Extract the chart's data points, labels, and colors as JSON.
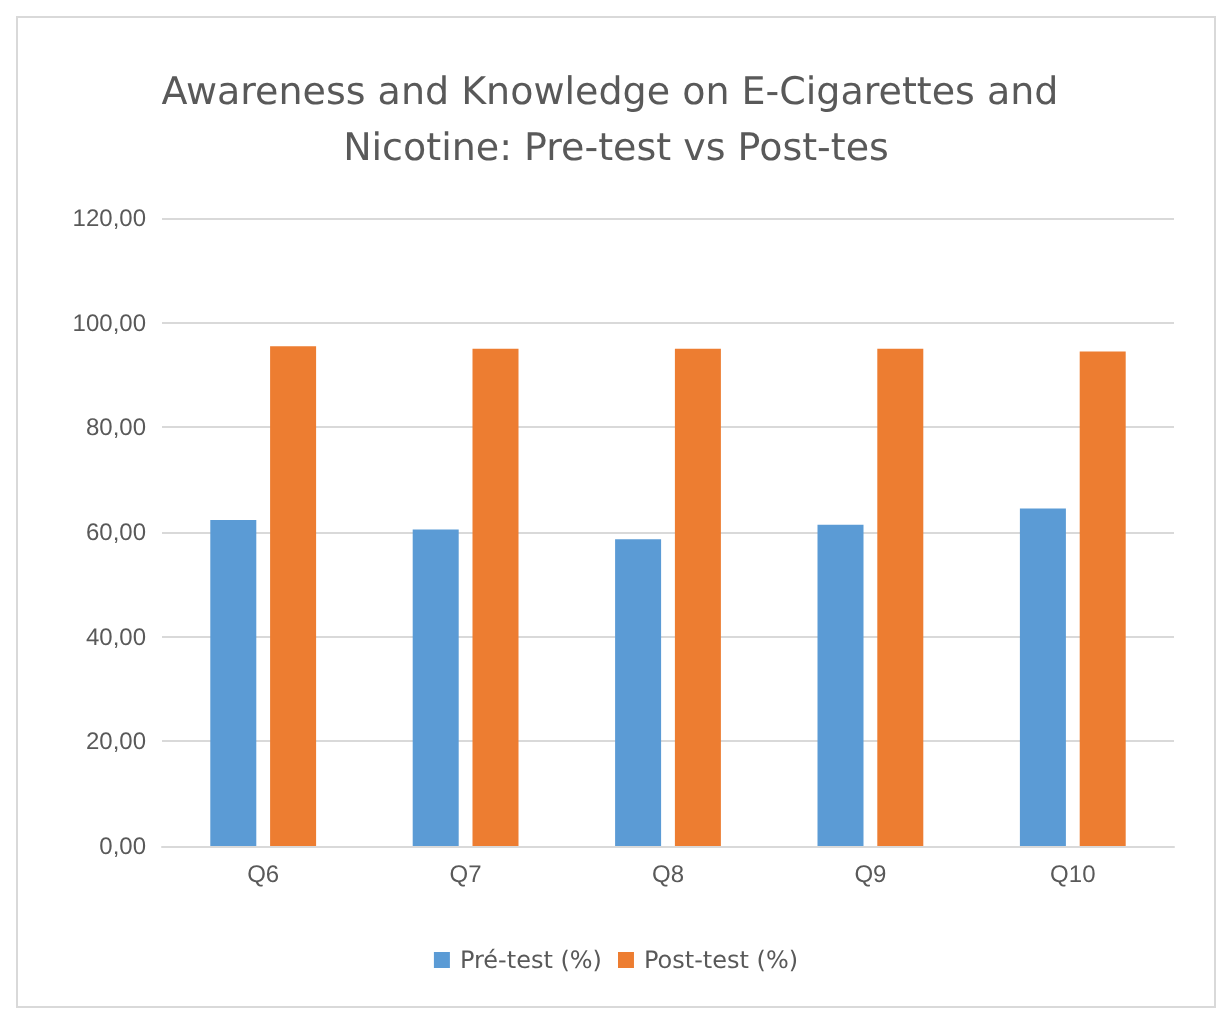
{
  "chart_data": {
    "type": "bar",
    "title": "Awareness and Knowledge on E-Cigarettes and Nicotine: Pre-test vs Post-tes",
    "categories": [
      "Q6",
      "Q7",
      "Q8",
      "Q9",
      "Q10"
    ],
    "series": [
      {
        "name": "Pré-test (%)",
        "color": "#5b9bd5",
        "values": [
          62.3,
          60.5,
          58.6,
          61.4,
          64.5
        ]
      },
      {
        "name": "Post-test (%)",
        "color": "#ed7d31",
        "values": [
          95.5,
          95.0,
          95.0,
          95.0,
          94.5
        ]
      }
    ],
    "ylim": [
      0,
      120
    ],
    "yticks": [
      {
        "value": 0,
        "label": "0,00"
      },
      {
        "value": 20,
        "label": "20,00"
      },
      {
        "value": 40,
        "label": "40,00"
      },
      {
        "value": 60,
        "label": "60,00"
      },
      {
        "value": 80,
        "label": "80,00"
      },
      {
        "value": 100,
        "label": "100,00"
      },
      {
        "value": 120,
        "label": "120,00"
      }
    ],
    "grid": "y",
    "legend": "bottom"
  }
}
